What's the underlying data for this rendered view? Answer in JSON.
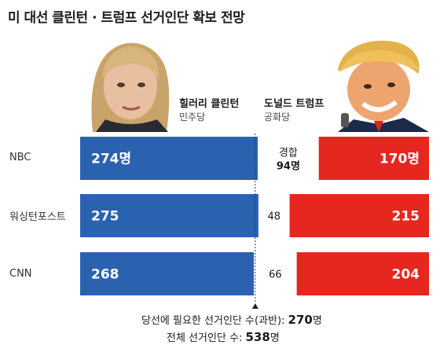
{
  "title": "미 대선 클린턴 · 트럼프 선거인단 확보 전망",
  "candidates": {
    "left": {
      "name": "힐러리 클린턴",
      "party": "민주당",
      "color": "#2b62b0"
    },
    "right": {
      "name": "도널드 트럼프",
      "party": "공화당",
      "color": "#e5271f"
    }
  },
  "chart_data": {
    "type": "bar",
    "orientation": "horizontal-stacked",
    "categories": [
      "NBC",
      "워싱턴포스트",
      "CNN"
    ],
    "series": [
      {
        "name": "힐러리 클린턴",
        "values": [
          274,
          275,
          268
        ],
        "labels": [
          "274명",
          "275",
          "268"
        ]
      },
      {
        "name": "경합",
        "values": [
          94,
          48,
          66
        ],
        "labels": [
          "경합",
          "48",
          "66"
        ]
      },
      {
        "name": "도널드 트럼프",
        "values": [
          170,
          215,
          204
        ],
        "labels": [
          "170명",
          "215",
          "204"
        ]
      }
    ],
    "tossup_value_labels": [
      "94명",
      "",
      ""
    ],
    "total": 538,
    "threshold": 270,
    "colors": {
      "clinton": "#2b62b0",
      "tossup": "#ffffff",
      "trump": "#e5271f"
    }
  },
  "footnotes": {
    "line1_text": "당선에 필요한 선거인단 수(과반): ",
    "line1_value": "270",
    "line1_unit": "명",
    "line2_text": "전체 선거인단 수: ",
    "line2_value": "538",
    "line2_unit": "명"
  }
}
